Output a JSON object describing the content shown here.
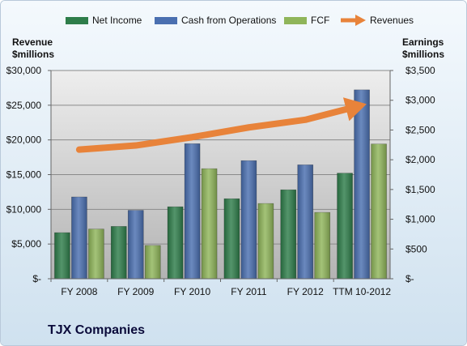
{
  "company_title": "TJX Companies",
  "left_axis_title": [
    "Revenue",
    "$millions"
  ],
  "right_axis_title": [
    "Earnings",
    "$millions"
  ],
  "legend": [
    {
      "label": "Net Income",
      "color": "#2e7d4a"
    },
    {
      "label": "Cash from Operations",
      "color": "#4a6fb0"
    },
    {
      "label": "FCF",
      "color": "#8fb55a"
    },
    {
      "label": "Revenues",
      "color": "#e8833a"
    }
  ],
  "colors": {
    "net_income": "#2e7d4a",
    "cash_from_operations": "#4a6fb0",
    "fcf": "#8fb55a",
    "revenues": "#e8833a",
    "plot_bg_top": "#eeeeee",
    "plot_bg_bottom": "#b3b3b3",
    "frame_bg_top": "#f4f9fd",
    "frame_bg_bottom": "#cfe1ef"
  },
  "chart_data": {
    "type": "bar",
    "categories": [
      "FY 2008",
      "FY 2009",
      "FY 2010",
      "FY 2011",
      "FY 2012",
      "TTM 10-2012"
    ],
    "series": [
      {
        "name": "Net Income",
        "axis": "right",
        "values": [
          775,
          880,
          1210,
          1345,
          1495,
          1775
        ]
      },
      {
        "name": "Cash from Operations",
        "axis": "right",
        "values": [
          1375,
          1150,
          2270,
          1985,
          1915,
          3175
        ]
      },
      {
        "name": "FCF",
        "axis": "right",
        "values": [
          835,
          560,
          1850,
          1265,
          1115,
          2265
        ]
      },
      {
        "name": "Revenues",
        "axis": "left",
        "type": "line",
        "arrow": true,
        "values": [
          18600,
          19200,
          20400,
          21800,
          22900,
          25000
        ]
      }
    ],
    "left_axis": {
      "ylim": [
        0,
        30000
      ],
      "tick_labels": [
        "$-",
        "$5,000",
        "$10,000",
        "$15,000",
        "$20,000",
        "$25,000",
        "$30,000"
      ]
    },
    "right_axis": {
      "ylim": [
        0,
        3500
      ],
      "tick_labels": [
        "$-",
        "$500",
        "$1,000",
        "$1,500",
        "$2,000",
        "$2,500",
        "$3,000",
        "$3,500"
      ]
    },
    "grid": true,
    "legend_position": "top"
  }
}
